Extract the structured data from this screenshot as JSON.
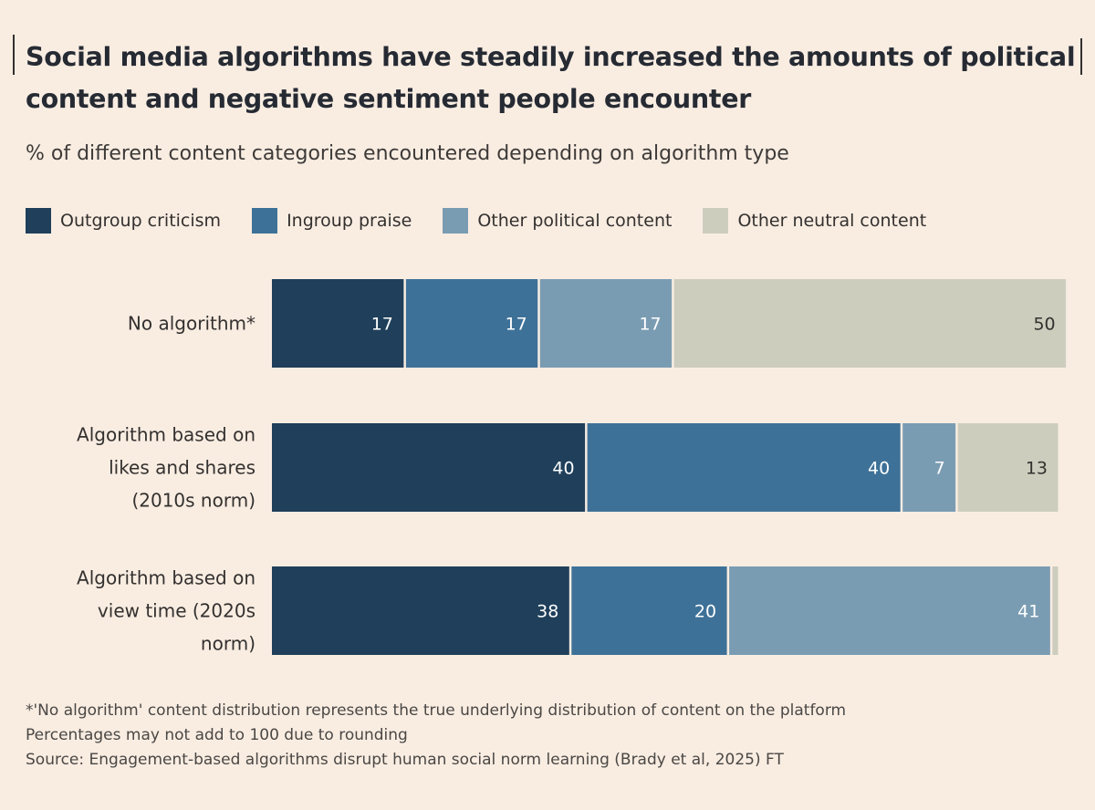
{
  "chart_data": {
    "type": "bar",
    "orientation": "horizontal",
    "stacked": true,
    "title": "Social media algorithms have steadily increased the amounts of political content and negative sentiment people encounter",
    "subtitle": "% of different content categories encountered depending on algorithm type",
    "categories": [
      "No algorithm*",
      "Algorithm based on likes and shares (2010s norm)",
      "Algorithm based on view time (2020s norm)"
    ],
    "series": [
      {
        "name": "Outgroup criticism",
        "color": "#1f3f5a",
        "values": [
          17,
          40,
          38
        ],
        "labels": [
          "17",
          "40",
          "38"
        ]
      },
      {
        "name": "Ingroup praise",
        "color": "#3e7198",
        "values": [
          17,
          40,
          20
        ],
        "labels": [
          "17",
          "40",
          "20"
        ]
      },
      {
        "name": "Other political content",
        "color": "#7a9cb3",
        "values": [
          17,
          7,
          41
        ],
        "labels": [
          "17",
          "7",
          "41"
        ]
      },
      {
        "name": "Other neutral content",
        "color": "#cdcdbe",
        "values": [
          50,
          13,
          1
        ],
        "labels": [
          "50",
          "13",
          ""
        ]
      }
    ],
    "xlim": [
      0,
      100
    ],
    "grid": false,
    "legend_position": "top",
    "notes": [
      "*'No algorithm' content distribution represents the true underlying distribution of content on the platform",
      "Percentages may not add to 100 due to rounding",
      "Source: Engagement-based algorithms disrupt human social norm learning (Brady et al, 2025) FT"
    ]
  },
  "colors": {
    "background": "#f9ede2",
    "label_light": "#ffffff",
    "label_dark": "#33302e"
  }
}
